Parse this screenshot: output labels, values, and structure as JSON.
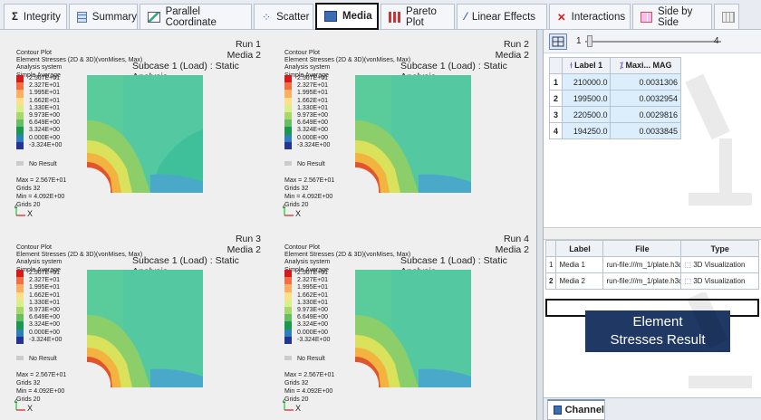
{
  "tabs": [
    {
      "label": "Integrity",
      "icon": "sigma-icon"
    },
    {
      "label": "Summary",
      "icon": "summary-table-icon"
    },
    {
      "label": "Parallel Coordinate",
      "icon": "parallel-coordinate-icon"
    },
    {
      "label": "Scatter",
      "icon": "scatter-icon"
    },
    {
      "label": "Media",
      "icon": "media-icon",
      "active": true
    },
    {
      "label": "Pareto Plot",
      "icon": "pareto-icon"
    },
    {
      "label": "Linear Effects",
      "icon": "linear-effects-icon"
    },
    {
      "label": "Interactions",
      "icon": "interactions-icon"
    },
    {
      "label": "Side by Side",
      "icon": "side-by-side-icon"
    }
  ],
  "legend": {
    "line1": "Contour Plot",
    "line2": "Element Stresses (2D & 3D)(vonMises, Max)",
    "line3": "Analysis system",
    "line4": "Simple Average",
    "values": [
      "2.567E+01",
      "2.327E+01",
      "1.995E+01",
      "1.662E+01",
      "1.330E+01",
      "9.973E+00",
      "6.649E+00",
      "3.324E+00",
      "0.000E+00",
      "-3.324E+00"
    ],
    "colors": [
      "#d7191c",
      "#f46d43",
      "#fdae61",
      "#fee08b",
      "#d9ef8b",
      "#a6d96a",
      "#66bd63",
      "#1a9850",
      "#2c7fb8",
      "#253494"
    ],
    "no_result": "No Result",
    "max": "Max = 2.567E+01",
    "max_grid": "Grids 32",
    "min": "Min = 4.092E+00",
    "min_grid": "Grids 20",
    "subcase": "Subcase 1 (Load) : Static Analysis"
  },
  "runs": [
    {
      "run": "Run 1",
      "media": "Media 2"
    },
    {
      "run": "Run 2",
      "media": "Media 2"
    },
    {
      "run": "Run 3",
      "media": "Media 2"
    },
    {
      "run": "Run 4",
      "media": "Media 2"
    }
  ],
  "slider": {
    "min": "1",
    "max": "4"
  },
  "run_table": {
    "col1": "Label 1",
    "col2": "Maxi... MAG",
    "rows": [
      {
        "idx": "1",
        "label": "210000.0",
        "mag": "0.0031306"
      },
      {
        "idx": "2",
        "label": "199500.0",
        "mag": "0.0032954"
      },
      {
        "idx": "3",
        "label": "220500.0",
        "mag": "0.0029816"
      },
      {
        "idx": "4",
        "label": "194250.0",
        "mag": "0.0033845"
      }
    ]
  },
  "media_table": {
    "col_label": "Label",
    "col_file": "File",
    "col_type": "Type",
    "rows": [
      {
        "idx": "1",
        "label": "Media 1",
        "file": "run-file:///m_1/plate.h3d",
        "type": "3D Visualization"
      },
      {
        "idx": "2",
        "label": "Media 2",
        "file": "run-file:///m_1/plate.h3d",
        "type": "3D Visualization"
      }
    ]
  },
  "callout": {
    "line1": "Element",
    "line2": "Stresses Result"
  },
  "bottom_tab": "Channel"
}
